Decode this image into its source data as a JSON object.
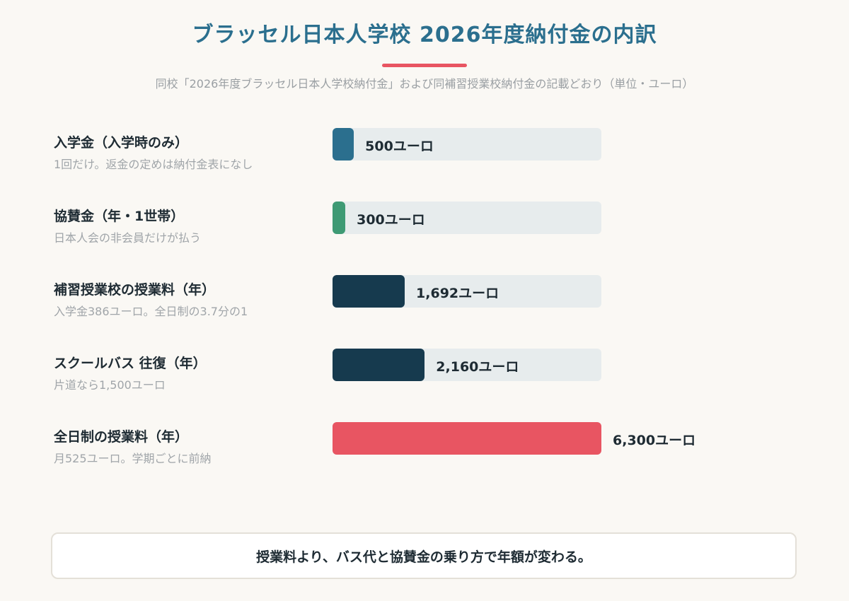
{
  "header": {
    "title": "ブラッセル日本人学校 2026年度納付金の内訳",
    "subtitle": "同校「2026年度ブラッセル日本人学校納付金」および同補習授業校納付金の記載どおり（単位・ユーロ）"
  },
  "chart_data": {
    "type": "bar",
    "orientation": "horizontal",
    "unit": "ユーロ",
    "xlim": [
      0,
      6300
    ],
    "items": [
      {
        "label": "入学金（入学時のみ）",
        "note": "1回だけ。返金の定めは納付金表になし",
        "value": 500,
        "value_label": "500ユーロ",
        "color": "#2b6f8e"
      },
      {
        "label": "協賛金（年・1世帯）",
        "note": "日本人会の非会員だけが払う",
        "value": 300,
        "value_label": "300ユーロ",
        "color": "#3e9a74"
      },
      {
        "label": "補習授業校の授業料（年）",
        "note": "入学金386ユーロ。全日制の3.7分の1",
        "value": 1692,
        "value_label": "1,692ユーロ",
        "color": "#163a4e"
      },
      {
        "label": "スクールバス 往復（年）",
        "note": "片道なら1,500ユーロ",
        "value": 2160,
        "value_label": "2,160ユーロ",
        "color": "#163a4e"
      },
      {
        "label": "全日制の授業料（年）",
        "note": "月525ユーロ。学期ごとに前納",
        "value": 6300,
        "value_label": "6,300ユーロ",
        "color": "#e85562"
      }
    ]
  },
  "callout": {
    "text": "授業料より、バス代と協賛金の乗り方で年額が変わる。"
  }
}
